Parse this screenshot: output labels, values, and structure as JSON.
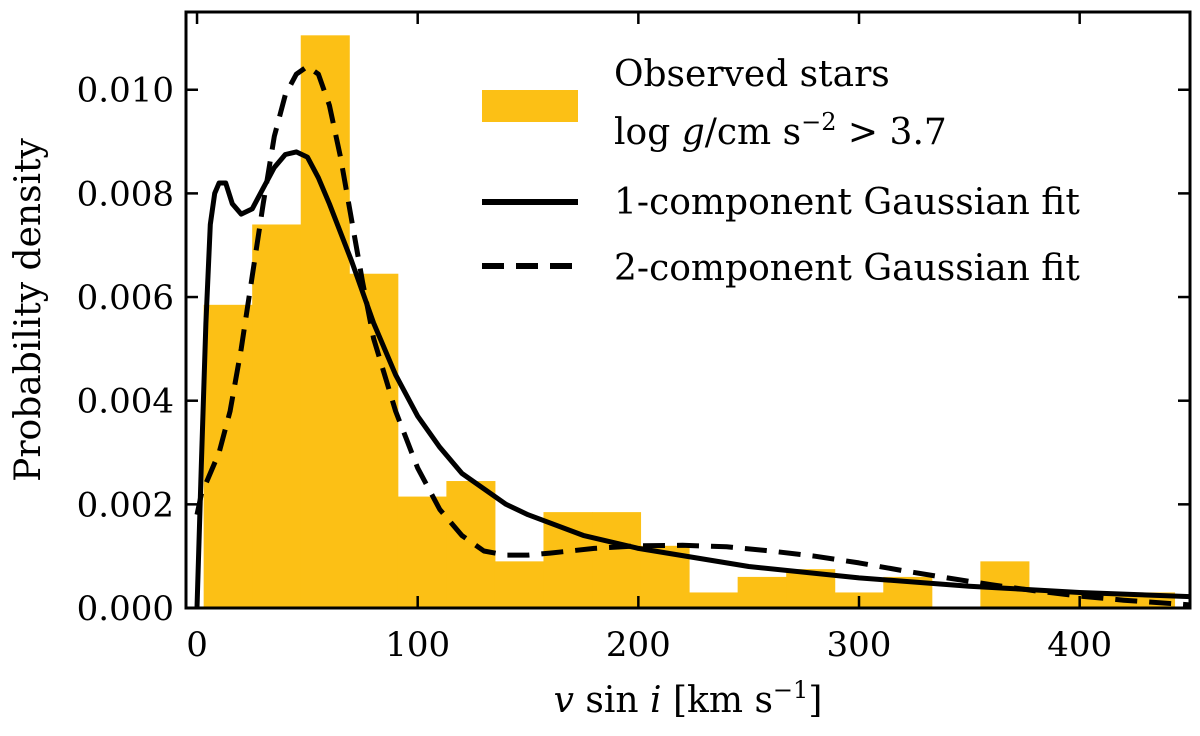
{
  "chart_data": {
    "type": "histogram",
    "title": "",
    "xlabel": "v sin i [km s⁻¹]",
    "ylabel": "Probability density",
    "xlim": [
      -5,
      450
    ],
    "ylim": [
      0,
      0.0115
    ],
    "x_ticks": [
      0,
      100,
      200,
      300,
      400
    ],
    "x_tick_labels": [
      "0",
      "100",
      "200",
      "300",
      "400"
    ],
    "y_ticks": [
      0,
      0.002,
      0.004,
      0.006,
      0.008,
      0.01
    ],
    "y_tick_labels": [
      "0.000",
      "0.002",
      "0.004",
      "0.006",
      "0.008",
      "0.010"
    ],
    "grid": false,
    "legend_position": "top-right",
    "colors": {
      "histogram": "#fcc015",
      "fit_lines": "#000000"
    },
    "histogram": {
      "name": "Observed stars",
      "name_line2": "log g/cm s⁻² > 3.7",
      "bin_edges": [
        3,
        25,
        47,
        69,
        91,
        113,
        135,
        157,
        179,
        201,
        223,
        245,
        267,
        289,
        311,
        333,
        355,
        377,
        399,
        421,
        443
      ],
      "values": [
        0.00585,
        0.0074,
        0.01105,
        0.00645,
        0.00215,
        0.00245,
        0.0009,
        0.00185,
        0.00185,
        0.0012,
        0.0003,
        0.0006,
        0.00075,
        0.0003,
        0.0006,
        0.0,
        0.0009,
        0.0003,
        0.0003,
        0.0003
      ]
    },
    "series": [
      {
        "name": "1-component Gaussian fit",
        "style": "solid",
        "x": [
          0,
          2,
          4,
          6,
          8,
          10,
          13,
          16,
          20,
          25,
          30,
          35,
          40,
          45,
          50,
          55,
          60,
          70,
          80,
          90,
          100,
          110,
          120,
          130,
          140,
          150,
          175,
          200,
          250,
          300,
          350,
          400,
          450
        ],
        "y": [
          0.0,
          0.0028,
          0.0055,
          0.0074,
          0.008,
          0.0082,
          0.0082,
          0.0078,
          0.0076,
          0.0077,
          0.0081,
          0.0085,
          0.00875,
          0.0088,
          0.0087,
          0.0083,
          0.0078,
          0.0067,
          0.0055,
          0.0045,
          0.0037,
          0.0031,
          0.0026,
          0.0023,
          0.002,
          0.0018,
          0.0014,
          0.00115,
          0.0008,
          0.00058,
          0.00042,
          0.0003,
          0.00022
        ]
      },
      {
        "name": "2-component Gaussian fit",
        "style": "dashed",
        "x": [
          0,
          2,
          5,
          10,
          15,
          20,
          25,
          30,
          35,
          40,
          45,
          50,
          55,
          60,
          65,
          70,
          75,
          80,
          90,
          100,
          110,
          120,
          130,
          140,
          150,
          160,
          180,
          200,
          220,
          240,
          260,
          280,
          300,
          320,
          340,
          360,
          380,
          400,
          420,
          450
        ],
        "y": [
          0.0018,
          0.0022,
          0.0025,
          0.003,
          0.0038,
          0.005,
          0.0064,
          0.0078,
          0.0091,
          0.0099,
          0.0103,
          0.01045,
          0.0103,
          0.0097,
          0.0087,
          0.0075,
          0.0063,
          0.0052,
          0.0038,
          0.0027,
          0.0019,
          0.0014,
          0.0011,
          0.00102,
          0.00102,
          0.00106,
          0.00115,
          0.0012,
          0.00121,
          0.00118,
          0.0011,
          0.001,
          0.00087,
          0.00072,
          0.00058,
          0.00045,
          0.00033,
          0.00023,
          0.00015,
          6e-05
        ]
      }
    ]
  }
}
